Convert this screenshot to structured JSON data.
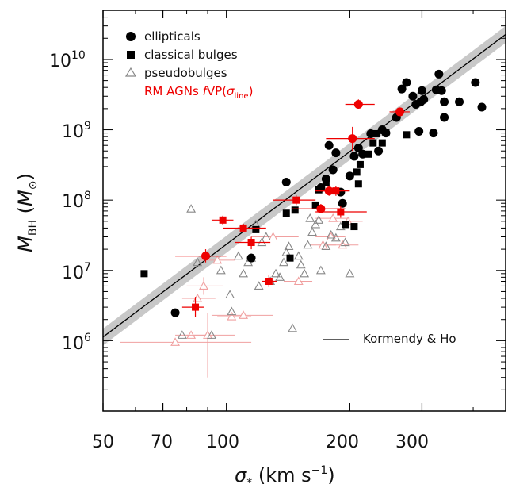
{
  "chart_data": {
    "type": "scatter",
    "xscale": "log",
    "yscale": "log",
    "xlim": [
      50,
      480
    ],
    "ylim": [
      100000,
      50000000000
    ],
    "xlabel": "σ* (km s⁻¹)",
    "ylabel": "M_BH (M⊙)",
    "xticks": [
      50,
      70,
      100,
      200,
      300
    ],
    "yticks_labeled": [
      "10^6",
      "10^7",
      "10^8",
      "10^9",
      "10^10"
    ],
    "grid": false,
    "legend": "top-left",
    "legend_entries": [
      "ellipticals",
      "classical bulges",
      "pseudobulges",
      "RM AGNs fVP(σline)"
    ],
    "series": [
      {
        "name": "ellipticals",
        "marker": "circle",
        "color": "#000000",
        "points": [
          [
            75,
            2500000.0
          ],
          [
            115,
            15000000.0
          ],
          [
            140,
            180000000.0
          ],
          [
            170,
            150000000.0
          ],
          [
            175,
            200000000.0
          ],
          [
            178,
            600000000.0
          ],
          [
            182,
            270000000.0
          ],
          [
            185,
            470000000.0
          ],
          [
            190,
            130000000.0
          ],
          [
            192,
            90000000.0
          ],
          [
            200,
            220000000.0
          ],
          [
            205,
            420000000.0
          ],
          [
            210,
            550000000.0
          ],
          [
            215,
            450000000.0
          ],
          [
            225,
            880000000.0
          ],
          [
            235,
            500000000.0
          ],
          [
            240,
            1000000000.0
          ],
          [
            245,
            900000000.0
          ],
          [
            260,
            1500000000.0
          ],
          [
            268,
            3800000000.0
          ],
          [
            275,
            4700000000.0
          ],
          [
            285,
            3000000000.0
          ],
          [
            290,
            2300000000.0
          ],
          [
            295,
            950000000.0
          ],
          [
            298,
            2500000000.0
          ],
          [
            300,
            3600000000.0
          ],
          [
            303,
            2700000000.0
          ],
          [
            320,
            900000000.0
          ],
          [
            325,
            3700000000.0
          ],
          [
            330,
            6200000000.0
          ],
          [
            335,
            3600000000.0
          ],
          [
            340,
            1500000000.0
          ],
          [
            340,
            2500000000.0
          ],
          [
            370,
            2500000000.0
          ],
          [
            405,
            4700000000.0
          ],
          [
            420,
            2100000000.0
          ]
        ]
      },
      {
        "name": "classical bulges",
        "marker": "square",
        "color": "#000000",
        "points": [
          [
            63,
            9000000.0
          ],
          [
            118,
            38000000.0
          ],
          [
            140,
            65000000.0
          ],
          [
            143,
            15000000.0
          ],
          [
            147,
            72000000.0
          ],
          [
            165,
            85000000.0
          ],
          [
            168,
            140000000.0
          ],
          [
            175,
            180000000.0
          ],
          [
            195,
            45000000.0
          ],
          [
            205,
            42000000.0
          ],
          [
            208,
            250000000.0
          ],
          [
            210,
            170000000.0
          ],
          [
            212,
            320000000.0
          ],
          [
            222,
            450000000.0
          ],
          [
            228,
            650000000.0
          ],
          [
            232,
            880000000.0
          ],
          [
            240,
            650000000.0
          ],
          [
            245,
            900000000.0
          ],
          [
            275,
            850000000.0
          ]
        ]
      },
      {
        "name": "pseudobulges",
        "marker": "triangle",
        "color": "#888888",
        "points": [
          [
            78,
            1200000.0
          ],
          [
            82,
            75000000.0
          ],
          [
            85,
            13000000.0
          ],
          [
            92,
            1200000.0
          ],
          [
            97,
            10000000.0
          ],
          [
            102,
            4500000.0
          ],
          [
            103,
            2600000.0
          ],
          [
            107,
            16000000.0
          ],
          [
            110,
            9000000.0
          ],
          [
            113,
            13000000.0
          ],
          [
            115,
            15000000.0
          ],
          [
            118,
            45000000.0
          ],
          [
            120,
            6000000.0
          ],
          [
            122,
            25000000.0
          ],
          [
            125,
            30000000.0
          ],
          [
            128,
            7000000.0
          ],
          [
            132,
            9000000.0
          ],
          [
            135,
            8000000.0
          ],
          [
            138,
            13000000.0
          ],
          [
            140,
            18000000.0
          ],
          [
            142,
            22000000.0
          ],
          [
            145,
            1500000.0
          ],
          [
            150,
            16000000.0
          ],
          [
            152,
            12000000.0
          ],
          [
            155,
            9000000.0
          ],
          [
            158,
            23000000.0
          ],
          [
            160,
            55000000.0
          ],
          [
            162,
            35000000.0
          ],
          [
            165,
            45000000.0
          ],
          [
            168,
            52000000.0
          ],
          [
            170,
            10000000.0
          ],
          [
            175,
            22000000.0
          ],
          [
            180,
            32000000.0
          ],
          [
            185,
            29000000.0
          ],
          [
            190,
            42000000.0
          ],
          [
            195,
            25000000.0
          ],
          [
            200,
            9000000.0
          ]
        ]
      },
      {
        "name": "RM AGNs fVP(σline)",
        "marker": "filled",
        "color": "#ee0000",
        "points": [
          {
            "x": 84,
            "y": 3000000.0,
            "shape": "square",
            "xerr": [
              78,
              88
            ],
            "yerr": [
              2200000.0,
              4200000.0
            ]
          },
          {
            "x": 89,
            "y": 16000000.0,
            "shape": "circle",
            "xerr": [
              75,
              100
            ],
            "yerr": [
              13000000.0,
              20000000.0
            ]
          },
          {
            "x": 98,
            "y": 52000000.0,
            "shape": "square",
            "xerr": [
              92,
              104
            ],
            "yerr": [
              45000000.0,
              60000000.0
            ]
          },
          {
            "x": 110,
            "y": 40000000.0,
            "shape": "square",
            "xerr": [
              98,
              125
            ],
            "yerr": [
              35000000.0,
              46000000.0
            ]
          },
          {
            "x": 115,
            "y": 25000000.0,
            "shape": "square",
            "xerr": [
              105,
              128
            ],
            "yerr": [
              20000000.0,
              30000000.0
            ]
          },
          {
            "x": 127,
            "y": 7000000.0,
            "shape": "square",
            "xerr": [
              122,
              133
            ],
            "yerr": [
              5800000.0,
              8500000.0
            ]
          },
          {
            "x": 148,
            "y": 100000000.0,
            "shape": "square",
            "xerr": [
              130,
              165
            ],
            "yerr": [
              85000000.0,
              118000000.0
            ]
          },
          {
            "x": 170,
            "y": 75000000.0,
            "shape": "circle",
            "xerr": [
              145,
              195
            ],
            "yerr": [
              65000000.0,
              88000000.0
            ]
          },
          {
            "x": 178,
            "y": 135000000.0,
            "shape": "circle",
            "xerr": [
              165,
              190
            ],
            "yerr": [
              115000000.0,
              160000000.0
            ]
          },
          {
            "x": 185,
            "y": 135000000.0,
            "shape": "square",
            "xerr": [
              170,
              200
            ],
            "yerr": [
              115000000.0,
              160000000.0
            ]
          },
          {
            "x": 190,
            "y": 68000000.0,
            "shape": "square",
            "xerr": [
              165,
              220
            ],
            "yerr": [
              56000000.0,
              82000000.0
            ]
          },
          {
            "x": 203,
            "y": 750000000.0,
            "shape": "circle",
            "xerr": [
              175,
              230
            ],
            "yerr": [
              500000000.0,
              1100000000.0
            ]
          },
          {
            "x": 210,
            "y": 2300000000.0,
            "shape": "circle",
            "xerr": [
              195,
              230
            ],
            "yerr": [
              2000000000.0,
              2700000000.0
            ]
          },
          {
            "x": 265,
            "y": 1800000000.0,
            "shape": "circle",
            "xerr": [
              250,
              280
            ],
            "yerr": [
              1600000000.0,
              2050000000.0
            ]
          }
        ]
      },
      {
        "name": "RM AGNs (light)",
        "marker": "triangle-open",
        "color": "#f0a0a0",
        "points": [
          {
            "x": 75,
            "y": 950000.0,
            "xerr": [
              55,
              115
            ]
          },
          {
            "x": 82,
            "y": 1200000.0,
            "xerr": [
              75,
              90
            ]
          },
          {
            "x": 85,
            "y": 4000000.0,
            "xerr": [
              78,
              94
            ]
          },
          {
            "x": 88,
            "y": 6000000.0,
            "xerr": [
              80,
              98
            ],
            "yerr": [
              4500000.0,
              8000000.0
            ]
          },
          {
            "x": 90,
            "y": 1200000.0,
            "xerr": [
              80,
              105
            ],
            "yerr": [
              300000.0,
              2500000.0
            ]
          },
          {
            "x": 95,
            "y": 14000000.0,
            "xerr": [
              86,
              105
            ]
          },
          {
            "x": 103,
            "y": 2200000.0,
            "xerr": [
              95,
              115
            ]
          },
          {
            "x": 110,
            "y": 2300000.0,
            "xerr": [
              92,
              130
            ]
          },
          {
            "x": 130,
            "y": 30000000.0,
            "xerr": [
              115,
              150
            ]
          },
          {
            "x": 150,
            "y": 7000000.0,
            "xerr": [
              138,
              162
            ]
          },
          {
            "x": 172,
            "y": 23000000.0,
            "xerr": [
              160,
              185
            ]
          },
          {
            "x": 180,
            "y": 30000000.0,
            "xerr": [
              165,
              195
            ]
          },
          {
            "x": 182,
            "y": 55000000.0,
            "xerr": [
              165,
              200
            ]
          },
          {
            "x": 192,
            "y": 23000000.0,
            "xerr": [
              175,
              210
            ]
          },
          {
            "x": 198,
            "y": 50000000.0,
            "xerr": [
              180,
              215
            ]
          }
        ]
      }
    ],
    "fit": {
      "name": "Kormendy & Ho",
      "log_norm": 8.69,
      "slope": 4.38,
      "x0": 200,
      "band_dex": 0.12,
      "line_color": "#000000",
      "band_color": "#c8c8c8"
    }
  }
}
